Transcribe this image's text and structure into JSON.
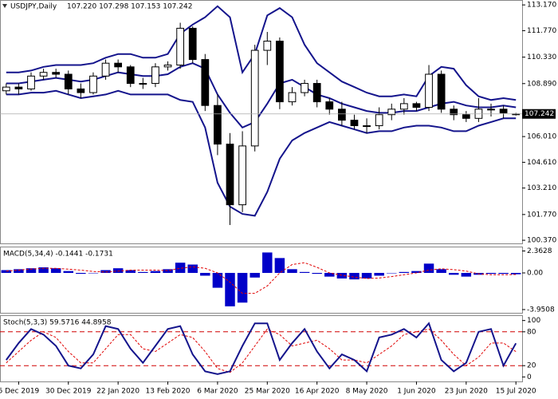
{
  "chart_data": [
    {
      "type": "candlestick",
      "title": "USDJPY,Daily",
      "ohlc_label": "107.220 107.298 107.153 107.242",
      "last_price_label": "107.242",
      "categories": [
        null,
        "6 Dec 2019",
        null,
        null,
        null,
        "30 Dec 2019",
        null,
        null,
        null,
        "22 Jan 2020",
        null,
        null,
        null,
        "13 Feb 2020",
        null,
        null,
        null,
        "6 Mar 2020",
        null,
        null,
        null,
        "25 Mar 2020",
        null,
        null,
        null,
        "16 Apr 2020",
        null,
        null,
        null,
        "8 May 2020",
        null,
        null,
        null,
        "1 Jun 2020",
        null,
        null,
        null,
        "23 Jun 2020",
        null,
        null,
        null,
        "15 Jul 2020"
      ],
      "open": [
        108.5,
        108.7,
        108.6,
        109.3,
        109.5,
        109.4,
        108.6,
        108.4,
        109.3,
        110.0,
        109.8,
        108.9,
        108.9,
        109.8,
        109.9,
        111.9,
        110.2,
        107.7,
        105.6,
        102.3,
        105.5,
        110.7,
        111.2,
        107.9,
        108.4,
        108.9,
        107.9,
        107.5,
        106.9,
        106.6,
        106.6,
        107.2,
        107.5,
        107.8,
        107.6,
        109.4,
        107.5,
        107.2,
        107.0,
        107.5,
        107.5,
        107.22
      ],
      "high": [
        108.9,
        108.9,
        109.5,
        109.7,
        109.7,
        109.6,
        108.9,
        109.5,
        110.2,
        110.2,
        109.9,
        109.2,
        110.0,
        110.1,
        112.2,
        112.0,
        110.5,
        108.3,
        106.2,
        106.3,
        111.0,
        111.7,
        111.4,
        108.7,
        109.1,
        109.1,
        108.1,
        107.9,
        107.2,
        107.0,
        107.6,
        107.8,
        108.1,
        107.9,
        109.9,
        109.6,
        107.7,
        107.4,
        108.1,
        107.8,
        107.7,
        107.298
      ],
      "low": [
        108.3,
        108.3,
        108.5,
        109.1,
        109.2,
        108.3,
        108.1,
        108.3,
        109.1,
        109.5,
        108.7,
        108.6,
        108.7,
        109.6,
        109.7,
        110.0,
        107.4,
        105.0,
        101.2,
        101.9,
        105.2,
        109.9,
        107.5,
        107.7,
        108.2,
        107.6,
        107.2,
        106.6,
        106.4,
        106.2,
        106.4,
        106.9,
        107.2,
        107.4,
        107.4,
        107.3,
        106.9,
        106.8,
        106.8,
        107.1,
        107.0,
        107.153
      ],
      "close": [
        108.7,
        108.6,
        109.3,
        109.5,
        109.4,
        108.6,
        108.4,
        109.3,
        110.0,
        109.8,
        108.9,
        108.9,
        109.8,
        109.9,
        111.9,
        110.2,
        107.7,
        105.6,
        102.3,
        105.5,
        110.7,
        111.2,
        107.9,
        108.4,
        108.9,
        107.9,
        107.5,
        106.9,
        106.6,
        106.6,
        107.2,
        107.5,
        107.8,
        107.6,
        109.4,
        107.5,
        107.2,
        107.0,
        107.5,
        107.5,
        107.3,
        107.242
      ],
      "series": [
        {
          "color": "#14148c",
          "values": [
            109.5,
            109.5,
            109.6,
            109.8,
            109.9,
            109.9,
            109.9,
            110.0,
            110.3,
            110.5,
            110.5,
            110.3,
            110.3,
            110.5,
            111.6,
            112.1,
            112.5,
            113.1,
            112.5,
            109.5,
            110.5,
            112.6,
            113.0,
            112.5,
            111.0,
            110.0,
            109.5,
            109.0,
            108.7,
            108.4,
            108.2,
            108.2,
            108.3,
            108.2,
            109.3,
            109.8,
            109.7,
            108.8,
            108.2,
            108.0,
            108.1,
            108.0
          ]
        },
        {
          "color": "#14148c",
          "values": [
            108.9,
            108.9,
            109.0,
            109.1,
            109.2,
            109.1,
            109.0,
            109.1,
            109.3,
            109.5,
            109.4,
            109.3,
            109.3,
            109.4,
            109.8,
            110.0,
            109.7,
            108.3,
            107.3,
            106.5,
            106.8,
            107.8,
            108.9,
            109.1,
            108.7,
            108.3,
            108.1,
            107.8,
            107.6,
            107.4,
            107.3,
            107.3,
            107.4,
            107.4,
            107.6,
            107.8,
            107.9,
            107.7,
            107.6,
            107.6,
            107.7,
            107.6
          ]
        },
        {
          "color": "#14148c",
          "values": [
            108.3,
            108.3,
            108.4,
            108.4,
            108.5,
            108.3,
            108.1,
            108.2,
            108.3,
            108.5,
            108.3,
            108.3,
            108.3,
            108.3,
            108.0,
            107.9,
            106.5,
            103.5,
            102.2,
            101.8,
            101.7,
            103.0,
            104.8,
            105.8,
            106.2,
            106.5,
            106.8,
            106.6,
            106.4,
            106.2,
            106.3,
            106.3,
            106.5,
            106.6,
            106.6,
            106.5,
            106.3,
            106.3,
            106.6,
            106.8,
            107.0,
            107.0
          ]
        }
      ],
      "ylim": [
        100.2,
        113.35
      ],
      "yticks": [
        {
          "value": 113.17,
          "label": "113.170"
        },
        {
          "value": 111.77,
          "label": "111.770"
        },
        {
          "value": 110.33,
          "label": "110.330"
        },
        {
          "value": 108.89,
          "label": "108.890"
        },
        {
          "value": 106.01,
          "label": "106.010"
        },
        {
          "value": 104.61,
          "label": "104.610"
        },
        {
          "value": 103.21,
          "label": "103.210"
        },
        {
          "value": 101.77,
          "label": "101.770"
        },
        {
          "value": 100.37,
          "label": "100.370"
        }
      ]
    },
    {
      "type": "macd",
      "title": "MACD(5,34,4) -0.1441 -0.1731",
      "histogram": {
        "color": "#0000c8",
        "values": [
          0.3,
          0.4,
          0.5,
          0.6,
          0.5,
          0.2,
          -0.1,
          0.0,
          0.3,
          0.5,
          0.3,
          0.1,
          0.2,
          0.4,
          1.1,
          0.9,
          -0.3,
          -1.6,
          -3.6,
          -3.2,
          -0.5,
          2.2,
          1.6,
          0.4,
          0.1,
          -0.1,
          -0.4,
          -0.6,
          -0.7,
          -0.6,
          -0.3,
          0.0,
          0.1,
          0.2,
          1.0,
          0.4,
          -0.2,
          -0.4,
          -0.2,
          -0.1,
          -0.1,
          -0.1441
        ]
      },
      "signal": {
        "color": "#e00000",
        "values": [
          0.2,
          0.3,
          0.4,
          0.5,
          0.5,
          0.4,
          0.3,
          0.15,
          0.1,
          0.2,
          0.3,
          0.3,
          0.3,
          0.25,
          0.5,
          0.65,
          0.5,
          0.0,
          -1.0,
          -2.2,
          -2.2,
          -1.4,
          0.0,
          0.9,
          1.1,
          0.6,
          0.0,
          -0.25,
          -0.45,
          -0.6,
          -0.55,
          -0.4,
          -0.2,
          0.0,
          0.3,
          0.45,
          0.35,
          0.2,
          -0.1,
          -0.2,
          -0.2,
          -0.1731
        ]
      },
      "ylim": [
        -4.3,
        2.75
      ],
      "yticks": [
        2.3628,
        {
          "value": 0,
          "label": "0.00"
        },
        -3.9508
      ]
    },
    {
      "type": "stochastic",
      "title": "Stoch(5,3,3) 59.5716 44.8958",
      "main": {
        "color": "#14148c",
        "values": [
          30,
          60,
          85,
          75,
          55,
          20,
          15,
          40,
          90,
          85,
          50,
          25,
          55,
          85,
          90,
          40,
          10,
          5,
          10,
          55,
          95,
          95,
          30,
          60,
          85,
          45,
          15,
          40,
          30,
          10,
          70,
          75,
          85,
          70,
          95,
          30,
          10,
          25,
          80,
          85,
          20,
          59.5716
        ]
      },
      "signal": {
        "color": "#e00000",
        "values": [
          25,
          45,
          65,
          80,
          70,
          45,
          25,
          25,
          50,
          75,
          75,
          50,
          45,
          60,
          75,
          70,
          45,
          15,
          8,
          25,
          55,
          85,
          75,
          55,
          60,
          65,
          50,
          30,
          30,
          25,
          40,
          55,
          75,
          80,
          85,
          65,
          40,
          20,
          35,
          60,
          60,
          44.8958
        ]
      },
      "levels": [
        20,
        80
      ],
      "level_color": "#d00000",
      "ylim": [
        -8,
        108
      ],
      "yticks": [
        100,
        80,
        20,
        0
      ]
    }
  ]
}
